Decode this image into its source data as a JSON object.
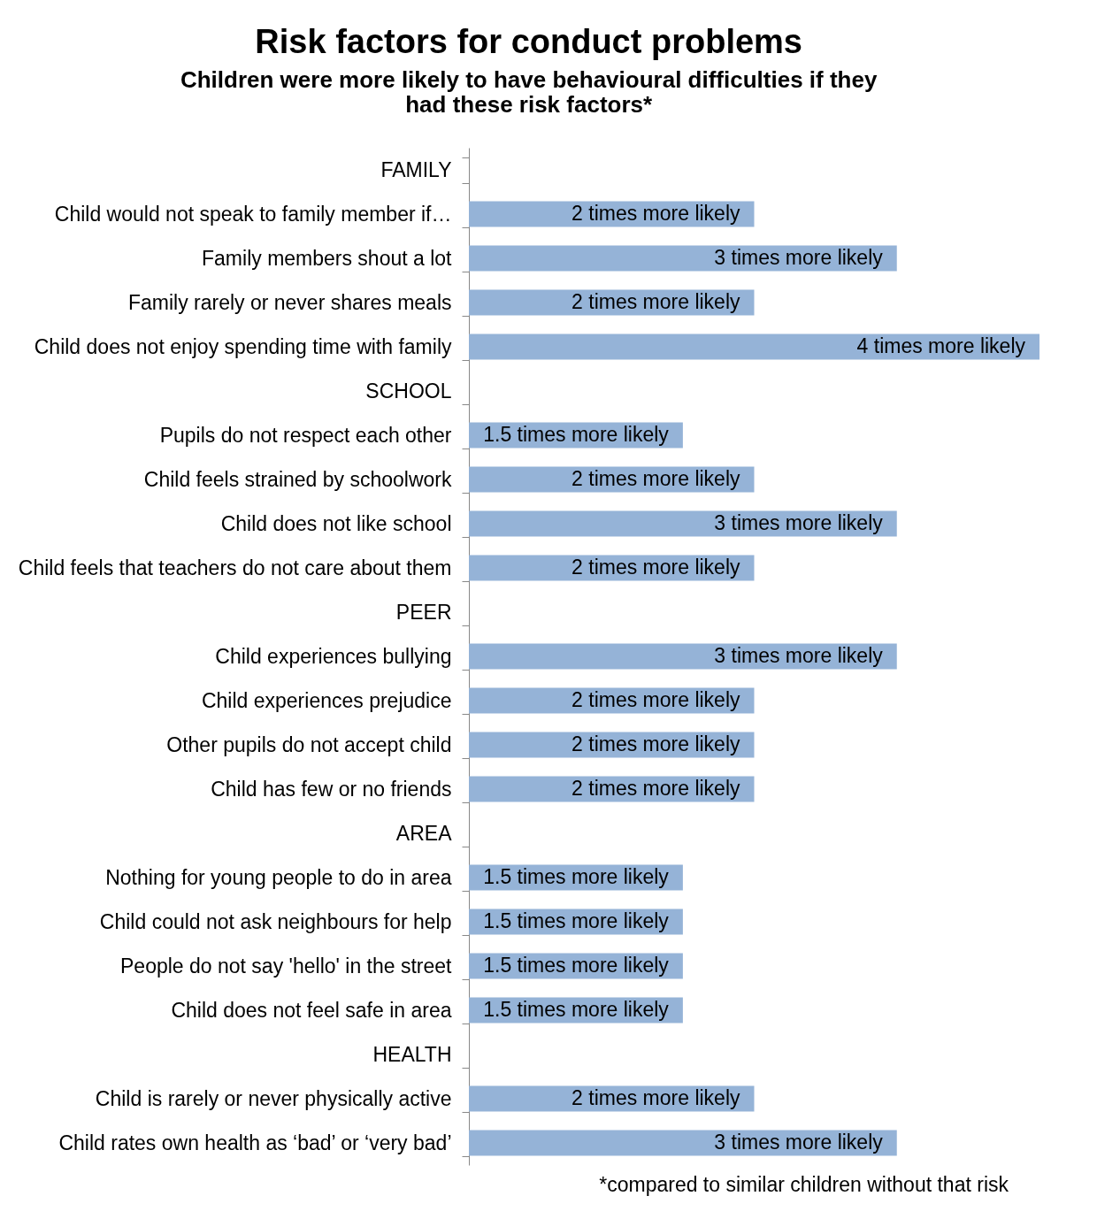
{
  "chart_data": {
    "type": "bar",
    "orientation": "horizontal",
    "title": "Risk factors for conduct problems",
    "subtitle": "Children were more likely to have behavioural difficulties if they had these risk factors*",
    "categories": [
      "FAMILY",
      "Child would not speak to family member if…",
      "Family members shout a lot",
      "Family rarely or never shares meals",
      "Child does not enjoy spending time with family",
      "SCHOOL",
      "Pupils do not respect each other",
      "Child feels strained by schoolwork",
      "Child does not like school",
      "Child feels that teachers do not care about them",
      "PEER",
      "Child experiences bullying",
      "Child experiences prejudice",
      "Other pupils do not accept child",
      "Child has few or no friends",
      "AREA",
      "Nothing for young people to do in area",
      "Child could not ask neighbours for help",
      "People do not say 'hello' in the street",
      "Child does not feel safe in area",
      "HEALTH",
      "Child is rarely or never physically active",
      "Child rates own health as ‘bad’ or ‘very bad’"
    ],
    "values": [
      null,
      2,
      3,
      2,
      4,
      null,
      1.5,
      2,
      3,
      2,
      null,
      3,
      2,
      2,
      2,
      null,
      1.5,
      1.5,
      1.5,
      1.5,
      null,
      2,
      3
    ],
    "value_labels": [
      null,
      "2 times more likely",
      "3 times more likely",
      "2 times more likely",
      "4 times more likely",
      null,
      "1.5 times more likely",
      "2 times more likely",
      "3 times more likely",
      "2 times more likely",
      null,
      "3 times more likely",
      "2 times more likely",
      "2 times more likely",
      "2 times more likely",
      null,
      "1.5 times more likely",
      "1.5 times more likely",
      "1.5 times more likely",
      "1.5 times more likely",
      null,
      "2 times more likely",
      "3 times more likely"
    ],
    "color": "#95b3d7",
    "annotations": [
      "*compared to similar children without that risk"
    ]
  }
}
